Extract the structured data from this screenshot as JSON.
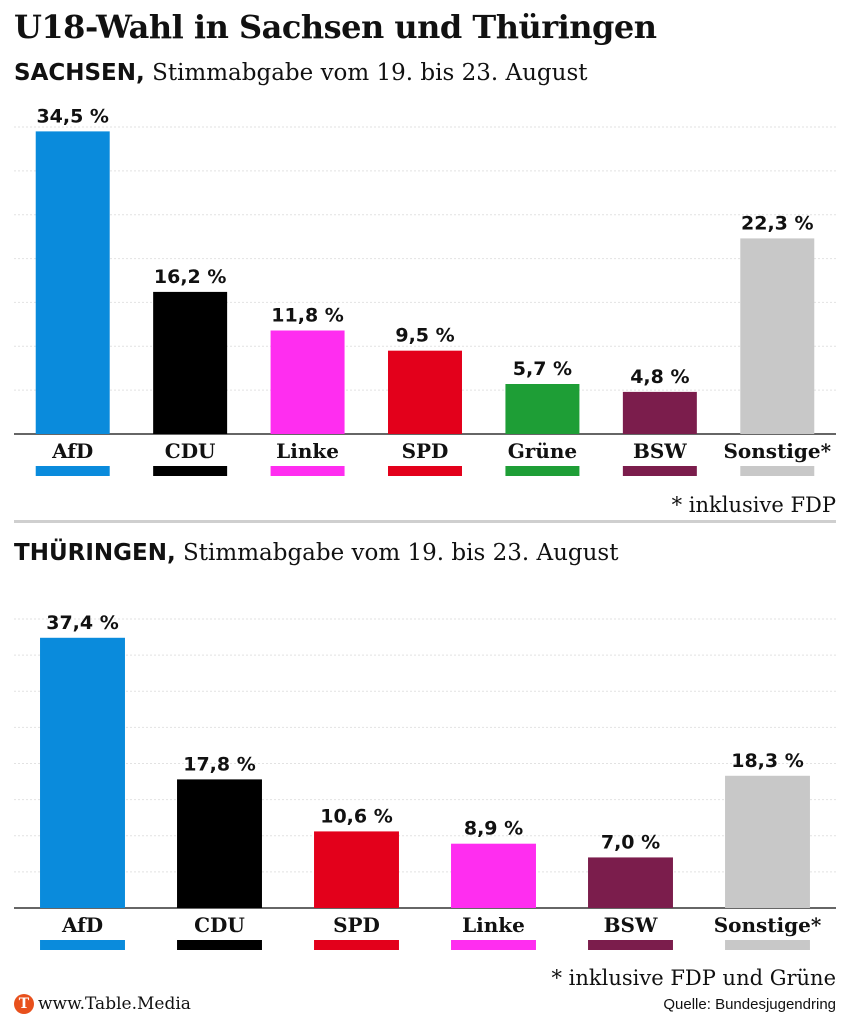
{
  "title": "U18-Wahl in Sachsen und Thüringen",
  "colors": {
    "AfD": "#0a8bdc",
    "CDU": "#000000",
    "Linke": "#ff2df0",
    "SPD": "#e3001b",
    "Grüne": "#1e9e36",
    "BSW": "#7b1d4c",
    "Sonstige*": "#c8c8c8",
    "brand": "#e8501c",
    "divider": "#cfcfcf"
  },
  "sections": [
    {
      "region": "SACHSEN,",
      "subtitle": " Stimmabgabe vom 19. bis 23. August",
      "footnote": "*  inklusive FDP"
    },
    {
      "region": "THÜRINGEN,",
      "subtitle": " Stimmabgabe vom 19. bis 23. August",
      "footnote": "*  inklusive FDP und Grüne"
    }
  ],
  "chart_data": [
    {
      "type": "bar",
      "categories": [
        "AfD",
        "CDU",
        "Linke",
        "SPD",
        "Grüne",
        "BSW",
        "Sonstige*"
      ],
      "values": [
        34.5,
        16.2,
        11.8,
        9.5,
        5.7,
        4.8,
        22.3
      ],
      "value_labels": [
        "34,5 %",
        "16,2 %",
        "11,8 %",
        "9,5 %",
        "5,7 %",
        "4,8 %",
        "22,3 %"
      ],
      "ylim": [
        0,
        35
      ],
      "grid": true,
      "legend": "colour bars below category labels"
    },
    {
      "type": "bar",
      "categories": [
        "AfD",
        "CDU",
        "SPD",
        "Linke",
        "BSW",
        "Sonstige*"
      ],
      "values": [
        37.4,
        17.8,
        10.6,
        8.9,
        7.0,
        18.3
      ],
      "value_labels": [
        "37,4 %",
        "17,8 %",
        "10,6 %",
        "8,9 %",
        "7,0 %",
        "18,3 %"
      ],
      "ylim": [
        0,
        40
      ],
      "grid": true,
      "legend": "colour bars below category labels"
    }
  ],
  "footer": {
    "logo_letter": "T",
    "brand": "www.Table.Media",
    "source": "Quelle: Bundesjugendring"
  }
}
